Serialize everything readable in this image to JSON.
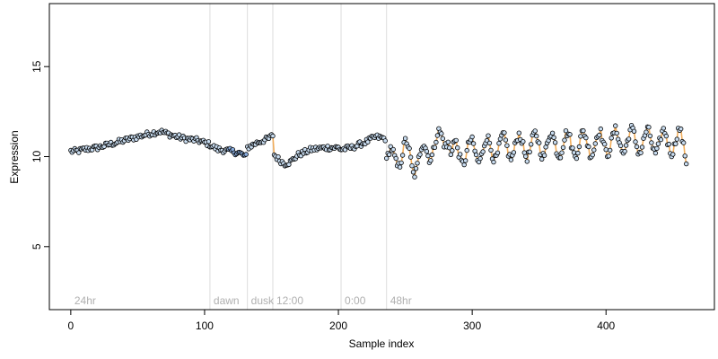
{
  "chart_data": {
    "type": "scatter",
    "xlabel": "Sample index",
    "ylabel": "Expression",
    "xlim": [
      -16,
      481
    ],
    "ylim": [
      1.5,
      18.5
    ],
    "x_ticks": [
      0,
      100,
      200,
      300,
      400
    ],
    "y_ticks": [
      5,
      10,
      15
    ],
    "x_tick_labels": [
      "0",
      "100",
      "200",
      "300",
      "400"
    ],
    "y_tick_labels": [
      "5",
      "10",
      "15"
    ],
    "grid": false,
    "colors": {
      "point_fill_light": "#c8dcf0",
      "point_fill_blue": "#8aaee0",
      "line_orange": "#f0a040",
      "divider": "#dcdcdc",
      "segment_label": "#b0b0b0"
    },
    "segments": [
      {
        "label": "24hr",
        "x_start": 0
      },
      {
        "label": "dawn",
        "x_start": 104
      },
      {
        "label": "dusk",
        "x_start": 132
      },
      {
        "label": "12:00",
        "x_start": 151
      },
      {
        "label": "0:00",
        "x_start": 202
      },
      {
        "label": "48hr",
        "x_start": 236
      }
    ],
    "dividers": [
      104,
      132,
      151,
      202,
      236
    ],
    "profile": [
      [
        0,
        10.3
      ],
      [
        5,
        10.3
      ],
      [
        10,
        10.4
      ],
      [
        20,
        10.5
      ],
      [
        30,
        10.7
      ],
      [
        40,
        10.9
      ],
      [
        50,
        11.1
      ],
      [
        60,
        11.3
      ],
      [
        67,
        11.4
      ],
      [
        75,
        11.2
      ],
      [
        85,
        11.0
      ],
      [
        95,
        10.9
      ],
      [
        103,
        10.7
      ],
      [
        110,
        10.4
      ],
      [
        120,
        10.3
      ],
      [
        126,
        10.2
      ],
      [
        131,
        10.0
      ],
      [
        132,
        10.5
      ],
      [
        140,
        10.8
      ],
      [
        148,
        11.0
      ],
      [
        151,
        11.2
      ],
      [
        152,
        10.1
      ],
      [
        156,
        9.8
      ],
      [
        160,
        9.6
      ],
      [
        164,
        9.7
      ],
      [
        170,
        10.1
      ],
      [
        180,
        10.4
      ],
      [
        190,
        10.5
      ],
      [
        200,
        10.5
      ],
      [
        202,
        10.4
      ],
      [
        210,
        10.5
      ],
      [
        220,
        10.8
      ],
      [
        228,
        11.1
      ],
      [
        235,
        11.0
      ],
      [
        236,
        9.7
      ],
      [
        243,
        10.0
      ],
      [
        250,
        10.3
      ],
      [
        256,
        9.6
      ],
      [
        262,
        10.0
      ],
      [
        270,
        10.6
      ],
      [
        276,
        10.8
      ],
      [
        282,
        11.3
      ],
      [
        284,
        10.2
      ],
      [
        290,
        10.2
      ],
      [
        300,
        10.3
      ],
      [
        320,
        10.5
      ],
      [
        340,
        10.6
      ],
      [
        360,
        10.7
      ],
      [
        380,
        10.7
      ],
      [
        400,
        10.8
      ],
      [
        420,
        10.9
      ],
      [
        440,
        10.8
      ],
      [
        455,
        10.9
      ],
      [
        460,
        10.3
      ]
    ],
    "oscillation_start": 236,
    "oscillation_period": 12,
    "oscillation_amplitude": 0.65,
    "n_samples": 461
  }
}
